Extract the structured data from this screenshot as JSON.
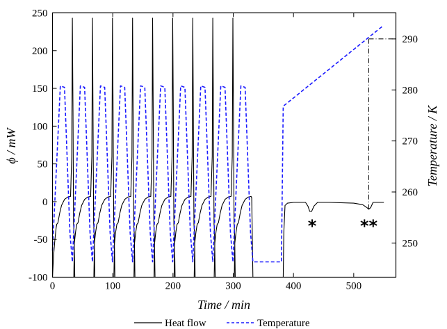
{
  "chart_data": {
    "type": "line",
    "xlabel": "Time / min",
    "ylabel": "ϕ / mW",
    "y2label": "Temperature / K",
    "xlim": [
      0,
      570
    ],
    "ylim": [
      -100,
      250
    ],
    "y2lim": [
      243.3,
      295.1
    ],
    "x_ticks": [
      0,
      100,
      200,
      300,
      400,
      500
    ],
    "y_ticks": [
      -100,
      -50,
      0,
      50,
      100,
      150,
      200,
      250
    ],
    "y2_ticks": [
      250,
      260,
      270,
      280,
      290
    ],
    "legend": {
      "position": "bottom",
      "entries": [
        "Heat flow",
        "Temperature"
      ]
    },
    "colors": {
      "heat_flow": "#000000",
      "temperature": "#1a1aff"
    },
    "series": [
      {
        "name": "Heat flow",
        "axis": "left",
        "style": "solid",
        "cycles": {
          "count": 10,
          "period_min": 33.3,
          "first_peak_min": 33,
          "peak_value": 243,
          "min_value": -100,
          "plateau_value": 5
        },
        "points": [
          [
            0,
            -100
          ],
          [
            2,
            -70
          ],
          [
            4,
            -50
          ],
          [
            6,
            -35
          ],
          [
            7,
            -30
          ],
          [
            9,
            -28
          ],
          [
            12,
            -15
          ],
          [
            15,
            -5
          ],
          [
            20,
            3
          ],
          [
            25,
            6
          ],
          [
            30,
            7
          ],
          [
            32,
            60
          ],
          [
            33,
            243
          ],
          [
            34,
            120
          ],
          [
            35,
            -30
          ],
          [
            36,
            -45
          ],
          [
            37,
            -100
          ],
          [
            383,
            -100
          ],
          [
            384,
            -40
          ],
          [
            386,
            -5
          ],
          [
            390,
            -2
          ],
          [
            400,
            -1
          ],
          [
            420,
            -1
          ],
          [
            424,
            -6
          ],
          [
            427,
            -13
          ],
          [
            430,
            -13
          ],
          [
            434,
            -6
          ],
          [
            440,
            -1
          ],
          [
            460,
            -1
          ],
          [
            500,
            -2
          ],
          [
            515,
            -4
          ],
          [
            522,
            -8
          ],
          [
            525,
            -10
          ],
          [
            528,
            -8
          ],
          [
            532,
            -1
          ],
          [
            550,
            -1
          ]
        ]
      },
      {
        "name": "Temperature",
        "axis": "right",
        "style": "dashed",
        "cycles": {
          "count": 10,
          "period_min": 33.3,
          "max_K": 280.8,
          "min_K": 246.3
        },
        "points": [
          [
            0,
            248.5
          ],
          [
            13,
            280.8
          ],
          [
            20,
            280.5
          ],
          [
            29,
            252
          ],
          [
            33,
            246.3
          ],
          [
            380,
            246.3
          ],
          [
            383,
            276.8
          ],
          [
            548,
            292.5
          ]
        ]
      }
    ],
    "annotations": [
      {
        "text": "*",
        "x": 431,
        "y": -27
      },
      {
        "text": "**",
        "x": 525,
        "y": -27
      }
    ],
    "reference_line": {
      "x": 525,
      "y_from": -10,
      "to_temperature_K": 290,
      "x_end": 570
    }
  }
}
